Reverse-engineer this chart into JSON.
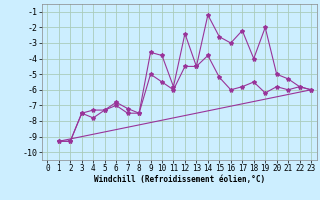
{
  "title": "",
  "xlabel": "Windchill (Refroidissement éolien,°C)",
  "bg_color": "#cceeff",
  "grid_color": "#aaccbb",
  "line_color": "#993399",
  "xlim": [
    -0.5,
    23.5
  ],
  "ylim": [
    -10.5,
    -0.5
  ],
  "xticks": [
    0,
    1,
    2,
    3,
    4,
    5,
    6,
    7,
    8,
    9,
    10,
    11,
    12,
    13,
    14,
    15,
    16,
    17,
    18,
    19,
    20,
    21,
    22,
    23
  ],
  "yticks": [
    -10,
    -9,
    -8,
    -7,
    -6,
    -5,
    -4,
    -3,
    -2,
    -1
  ],
  "series1_x": [
    1,
    2,
    3,
    4,
    5,
    6,
    7,
    8,
    9,
    10,
    11,
    12,
    13,
    14,
    15,
    16,
    17,
    18,
    19,
    20,
    21,
    22,
    23
  ],
  "series1_y": [
    -9.3,
    -9.3,
    -7.5,
    -7.8,
    -7.3,
    -7.0,
    -7.5,
    -7.5,
    -3.6,
    -3.8,
    -5.8,
    -2.4,
    -4.5,
    -1.2,
    -2.6,
    -3.0,
    -2.2,
    -4.0,
    -2.0,
    -5.0,
    -5.3,
    -5.8,
    -6.0
  ],
  "series2_x": [
    1,
    2,
    3,
    4,
    5,
    6,
    7,
    8,
    9,
    10,
    11,
    12,
    13,
    14,
    15,
    16,
    17,
    18,
    19,
    20,
    21,
    22,
    23
  ],
  "series2_y": [
    -9.3,
    -9.3,
    -7.5,
    -7.3,
    -7.3,
    -6.8,
    -7.2,
    -7.5,
    -5.0,
    -5.5,
    -6.0,
    -4.5,
    -4.5,
    -3.8,
    -5.2,
    -6.0,
    -5.8,
    -5.5,
    -6.2,
    -5.8,
    -6.0,
    -5.8,
    -6.0
  ],
  "series3_x": [
    1,
    23
  ],
  "series3_y": [
    -9.3,
    -6.0
  ],
  "markersize": 3,
  "linewidth": 0.8,
  "tick_fontsize": 5.5,
  "xlabel_fontsize": 5.5
}
